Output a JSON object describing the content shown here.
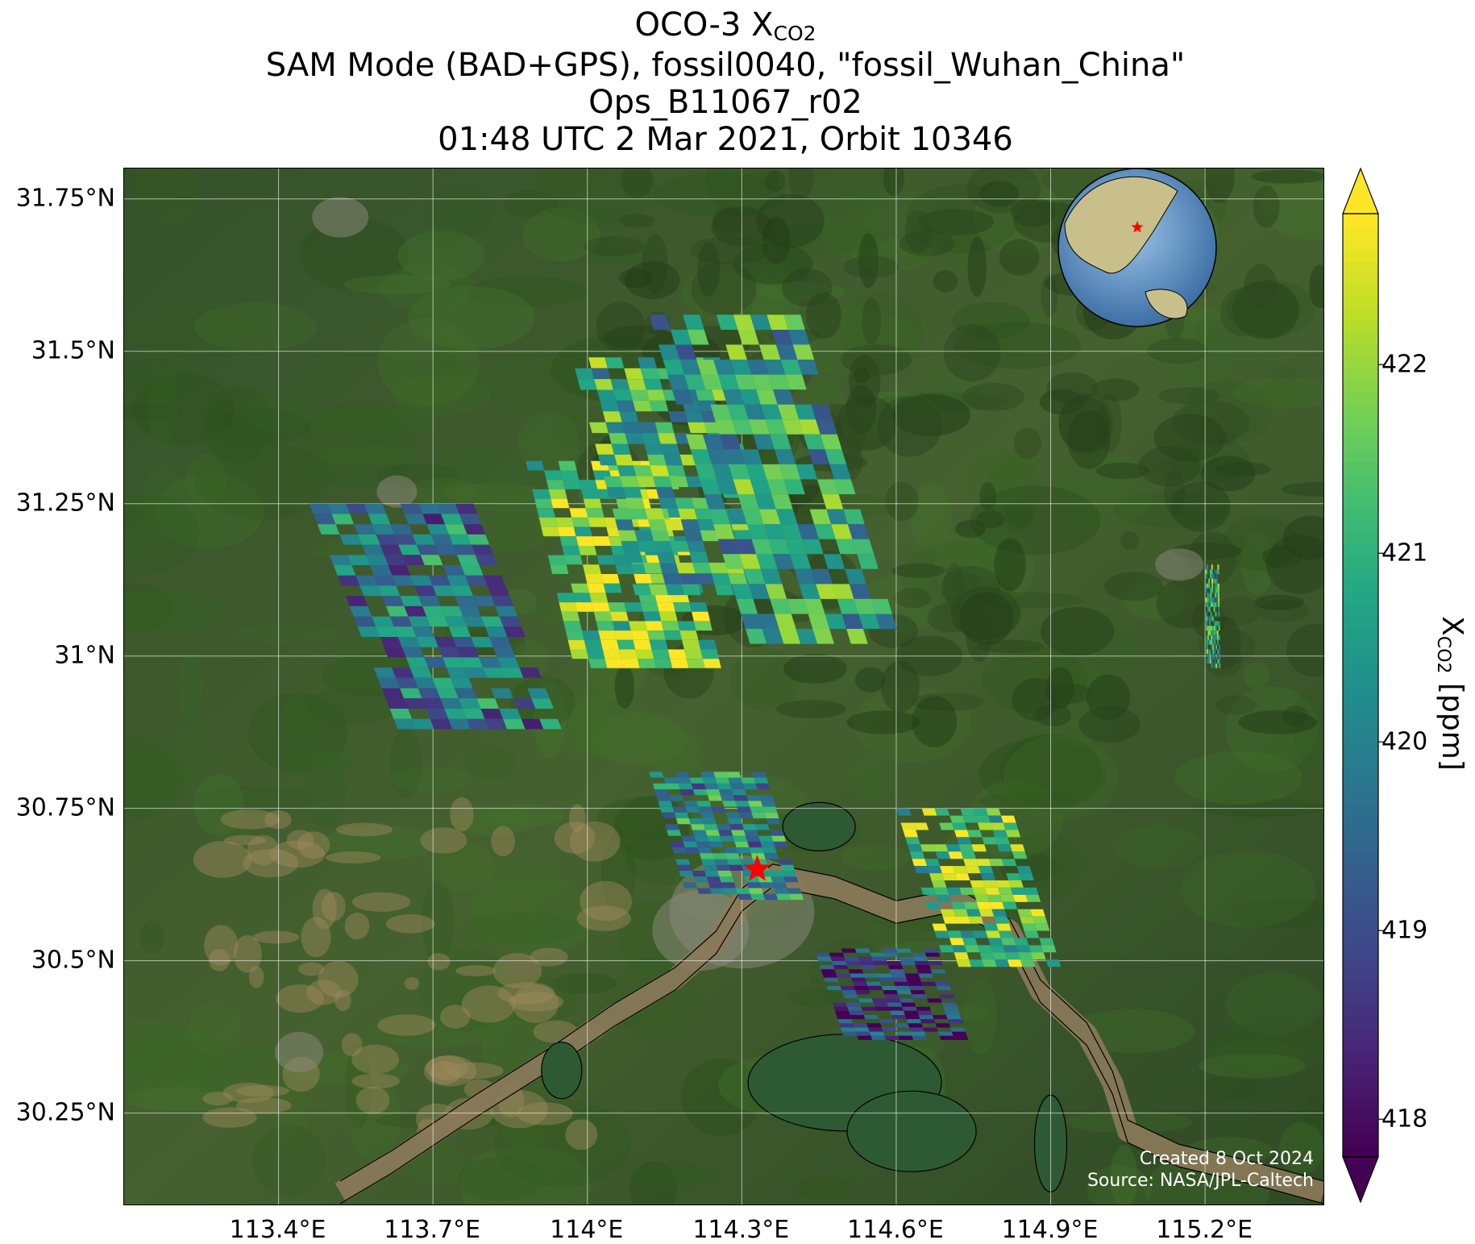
{
  "title": {
    "line1_prefix": "OCO-3 X",
    "line1_sub": "CO2",
    "line2": "SAM Mode (BAD+GPS), fossil0040, \"fossil_Wuhan_China\"",
    "line3": "Ops_B11067_r02",
    "line4": "01:48 UTC 2 Mar 2021, Orbit 10346"
  },
  "map": {
    "lon_range": [
      113.1,
      115.43
    ],
    "lat_range": [
      30.1,
      31.8
    ],
    "lat_ticks": [
      {
        "value": 31.75,
        "label": "31.75°N"
      },
      {
        "value": 31.5,
        "label": "31.5°N"
      },
      {
        "value": 31.25,
        "label": "31.25°N"
      },
      {
        "value": 31.0,
        "label": "31°N"
      },
      {
        "value": 30.75,
        "label": "30.75°N"
      },
      {
        "value": 30.5,
        "label": "30.5°N"
      },
      {
        "value": 30.25,
        "label": "30.25°N"
      }
    ],
    "lon_ticks": [
      {
        "value": 113.4,
        "label": "113.4°E"
      },
      {
        "value": 113.7,
        "label": "113.7°E"
      },
      {
        "value": 114.0,
        "label": "114°E"
      },
      {
        "value": 114.3,
        "label": "114.3°E"
      },
      {
        "value": 114.6,
        "label": "114.6°E"
      },
      {
        "value": 114.9,
        "label": "114.9°E"
      },
      {
        "value": 115.2,
        "label": "115.2°E"
      }
    ],
    "target": {
      "lon": 114.33,
      "lat": 30.65,
      "marker": "red-star"
    },
    "globe_inset": {
      "center_lon": 114.3,
      "center_lat": 30.6,
      "marker": "red-star"
    },
    "credits": [
      "Created 8 Oct 2024",
      "Source: NASA/JPL-Caltech"
    ]
  },
  "colorbar": {
    "colormap": "viridis",
    "range": [
      417.8,
      422.8
    ],
    "extend": "both",
    "ticks": [
      {
        "value": 418,
        "label": "418"
      },
      {
        "value": 419,
        "label": "419"
      },
      {
        "value": 420,
        "label": "420"
      },
      {
        "value": 421,
        "label": "421"
      },
      {
        "value": 422,
        "label": "422"
      }
    ],
    "label_prefix": "X",
    "label_sub": "CO2",
    "label_suffix": " [ppm]"
  },
  "colors": {
    "land": "#3f5a2a",
    "river": "#8b7a5a",
    "lake": "#2e5a33",
    "target_star": "#ff0000",
    "gridline": "#ffffff"
  },
  "swaths": [
    {
      "name": "western",
      "lon": [
        113.46,
        113.95
      ],
      "lat": [
        30.88,
        31.25
      ],
      "skew": 0.35,
      "mean": 419.8
    },
    {
      "name": "central-yellow",
      "lon": [
        113.88,
        114.26
      ],
      "lat": [
        30.98,
        31.32
      ],
      "skew": 0.25,
      "mean": 421.8
    },
    {
      "name": "central-upper",
      "lon": [
        113.97,
        114.38
      ],
      "lat": [
        31.1,
        31.49
      ],
      "skew": 0.3,
      "mean": 420.9
    },
    {
      "name": "northeast",
      "lon": [
        114.12,
        114.61
      ],
      "lat": [
        31.02,
        31.56
      ],
      "skew": 0.4,
      "mean": 420.6
    },
    {
      "name": "far-east-strip",
      "lon": [
        115.2,
        115.23
      ],
      "lat": [
        30.98,
        31.15
      ],
      "skew": 0.1,
      "mean": 420.9
    },
    {
      "name": "wuhan-south",
      "lon": [
        114.44,
        114.74
      ],
      "lat": [
        30.37,
        30.52
      ],
      "skew": 0.2,
      "mean": 418.5
    },
    {
      "name": "wuhan-east",
      "lon": [
        114.6,
        114.92
      ],
      "lat": [
        30.49,
        30.75
      ],
      "skew": 0.3,
      "mean": 421.4
    },
    {
      "name": "wuhan-west",
      "lon": [
        114.12,
        114.42
      ],
      "lat": [
        30.6,
        30.81
      ],
      "skew": 0.25,
      "mean": 420.2
    }
  ]
}
